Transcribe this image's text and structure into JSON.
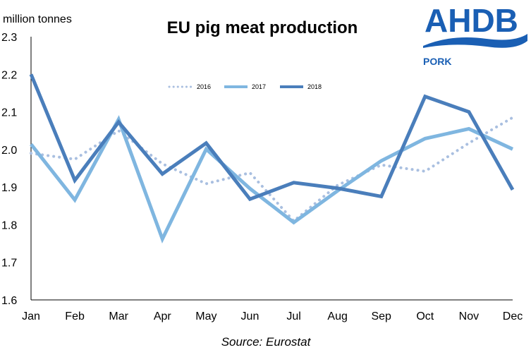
{
  "logo": {
    "text": "AHDB",
    "subtext": "PORK",
    "color": "#1a5fb4"
  },
  "chart_data": {
    "type": "line",
    "title": "EU pig meat production",
    "ylabel": "million tonnes",
    "xlabel": "",
    "source": "Source: Eurostat",
    "categories": [
      "Jan",
      "Feb",
      "Mar",
      "Apr",
      "May",
      "Jun",
      "Jul",
      "Aug",
      "Sep",
      "Oct",
      "Nov",
      "Dec"
    ],
    "ylim": [
      1.6,
      2.3
    ],
    "yticks": [
      "1.6",
      "1.7",
      "1.8",
      "1.9",
      "2.0",
      "2.1",
      "2.2",
      "2.3"
    ],
    "grid": false,
    "legend_position": "top-center",
    "series": [
      {
        "name": "2016",
        "style": "dotted",
        "color": "#a9bfe0",
        "values": [
          1.99,
          1.974,
          2.05,
          1.962,
          1.909,
          1.938,
          1.81,
          1.905,
          1.959,
          1.942,
          2.017,
          2.085
        ]
      },
      {
        "name": "2017",
        "style": "solid",
        "color": "#7fb6e0",
        "values": [
          2.014,
          1.866,
          2.08,
          1.762,
          2.001,
          1.896,
          1.806,
          1.89,
          1.97,
          2.029,
          2.055,
          2.001
        ]
      },
      {
        "name": "2018",
        "style": "solid",
        "color": "#4a7ebb",
        "values": [
          2.2,
          1.918,
          2.073,
          1.935,
          2.017,
          1.868,
          1.912,
          1.897,
          1.875,
          2.141,
          2.1,
          1.893
        ]
      }
    ]
  }
}
